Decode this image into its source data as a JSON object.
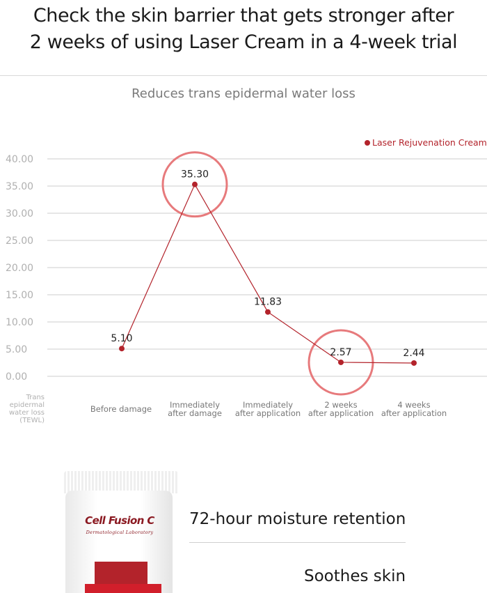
{
  "header": {
    "headline_line1": "Check the skin barrier that gets stronger after",
    "headline_line2": "2 weeks of using Laser Cream in a 4-week trial"
  },
  "chart_data": {
    "type": "line",
    "title": "Reduces trans epidermal water loss",
    "ylabel": "Trans epidermal water loss (TEWL)",
    "ylabel_lines": [
      "Trans",
      "epidermal",
      "water loss",
      "(TEWL)"
    ],
    "ylim": [
      0,
      40
    ],
    "yticks": [
      "0.00",
      "5.00",
      "10.00",
      "15.00",
      "20.00",
      "25.00",
      "30.00",
      "35.00",
      "40.00"
    ],
    "ytick_values": [
      0,
      5,
      10,
      15,
      20,
      25,
      30,
      35,
      40
    ],
    "categories": [
      [
        "Before damage"
      ],
      [
        "Immediately",
        "after damage"
      ],
      [
        "Immediately",
        "after application"
      ],
      [
        "2 weeks",
        "after application"
      ],
      [
        "4 weeks",
        "after application"
      ]
    ],
    "series": [
      {
        "name": "Laser Rejuvenation Cream",
        "values": [
          5.1,
          35.3,
          11.83,
          2.57,
          2.44
        ],
        "labels": [
          "5.10",
          "35.30",
          "11.83",
          "2.57",
          "2.44"
        ],
        "color": "#b3232b"
      }
    ],
    "highlighted_points": [
      1,
      3
    ],
    "highlight_color": "#e77a7c",
    "grid": true,
    "legend_position": "top-right"
  },
  "product": {
    "brand": "Cell Fusion C",
    "brand_sub": "Dermatological Laboratory"
  },
  "features": {
    "item1": "72-hour moisture retention",
    "item2": "Soothes skin"
  }
}
